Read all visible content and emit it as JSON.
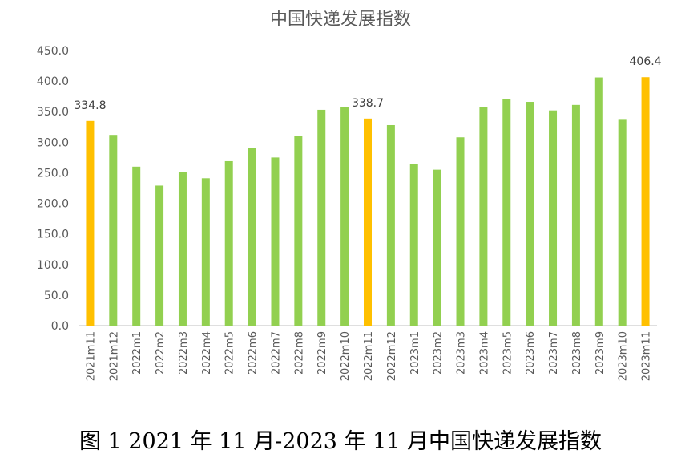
{
  "chart_data": {
    "type": "bar",
    "title": "中国快递发展指数",
    "categories": [
      "2021m11",
      "2021m12",
      "2022m1",
      "2022m2",
      "2022m3",
      "2022m4",
      "2022m5",
      "2022m6",
      "2022m7",
      "2022m8",
      "2022m9",
      "2022m10",
      "2022m11",
      "2022m12",
      "2023m1",
      "2023m2",
      "2023m3",
      "2023m4",
      "2023m5",
      "2023m6",
      "2023m7",
      "2023m8",
      "2023m9",
      "2023m10",
      "2023m11"
    ],
    "values": [
      334.8,
      312,
      260,
      229,
      251,
      241,
      269,
      290,
      275,
      310,
      353,
      358,
      338.7,
      328,
      265,
      255,
      308,
      357,
      371,
      366,
      352,
      361,
      406,
      338,
      406.4
    ],
    "highlight": [
      true,
      false,
      false,
      false,
      false,
      false,
      false,
      false,
      false,
      false,
      false,
      false,
      true,
      false,
      false,
      false,
      false,
      false,
      false,
      false,
      false,
      false,
      false,
      false,
      true
    ],
    "data_labels": [
      "334.8",
      "",
      "",
      "",
      "",
      "",
      "",
      "",
      "",
      "",
      "",
      "",
      "338.7",
      "",
      "",
      "",
      "",
      "",
      "",
      "",
      "",
      "",
      "",
      "",
      "406.4"
    ],
    "ylim": [
      0,
      450
    ],
    "yticks": [
      "0.0",
      "50.0",
      "100.0",
      "150.0",
      "200.0",
      "250.0",
      "300.0",
      "350.0",
      "400.0",
      "450.0"
    ],
    "xlabel": "",
    "ylabel": "",
    "grid": false,
    "legend": "none",
    "colors": {
      "normal": "#92D050",
      "highlight": "#FFC000",
      "axis": "#BFBFBF"
    }
  },
  "caption": "图 1 2021 年 11 月-2023 年 11 月中国快递发展指数"
}
